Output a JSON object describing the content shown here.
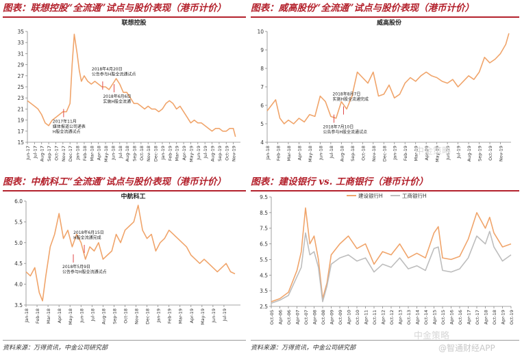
{
  "footer": {
    "source_left": "资料来源：万得资讯，中金公司研究部",
    "source_right": "资料来源：万得资讯，中金公司研究部",
    "watermark_top": "中金策略",
    "watermark_bottom": "中金策略",
    "watermark_app": "@智通财经APP"
  },
  "colors": {
    "title_red": "#b3202b",
    "series_orange": "#f0a46a",
    "series_grey": "#bdbdbd"
  },
  "chart_data": [
    {
      "type": "line",
      "panel_title": "图表：联想控股“全流通”试点与股价表现（港币计价）",
      "title": "联想控股",
      "ylim": [
        15,
        35
      ],
      "yticks": [
        15,
        17,
        19,
        21,
        23,
        25,
        27,
        29,
        31,
        33,
        35
      ],
      "xlim": [
        0,
        30
      ],
      "xticks": [
        "Jun-17",
        "Jul-17",
        "Aug-17",
        "Sep-17",
        "Oct-17",
        "Nov-17",
        "Dec-17",
        "Jan-18",
        "Feb-18",
        "Mar-18",
        "Apr-18",
        "May-18",
        "Jun-18",
        "Jul-18",
        "Aug-18",
        "Sep-18",
        "Oct-18",
        "Nov-18",
        "Dec-18",
        "Jan-19",
        "Feb-19",
        "Mar-19",
        "Apr-19",
        "May-19",
        "Jun-19",
        "Jul-19",
        "Aug-19",
        "Sep-19",
        "Oct-19",
        "Nov-19"
      ],
      "series": [
        {
          "name": "联想控股",
          "x": [
            0,
            0.5,
            1,
            1.5,
            2,
            2.5,
            3,
            3.5,
            4,
            4.5,
            5,
            5.5,
            6,
            6.3,
            6.6,
            7,
            7.3,
            7.6,
            8,
            8.5,
            9,
            9.5,
            10,
            10.5,
            11,
            11.5,
            12,
            12.5,
            13,
            13.5,
            14,
            14.5,
            15,
            15.5,
            16,
            16.5,
            17,
            17.5,
            18,
            18.5,
            19,
            19.5,
            20,
            20.5,
            21,
            21.5,
            22,
            22.5,
            23,
            23.5,
            24,
            24.5,
            25,
            25.5,
            26,
            26.5,
            27,
            27.5,
            28,
            28.5,
            29,
            29.3
          ],
          "values": [
            22.5,
            22,
            21.5,
            21,
            20,
            18.5,
            18,
            19,
            19.5,
            20,
            20.5,
            20.5,
            22,
            29,
            34.5,
            31,
            28,
            26,
            27,
            26,
            25.5,
            26,
            25.5,
            25,
            25,
            24.5,
            25.5,
            26.5,
            25.5,
            24,
            24,
            23,
            22,
            22,
            21.5,
            21,
            21.5,
            21,
            21,
            20.5,
            21,
            22,
            22.5,
            22,
            21,
            21.5,
            20.5,
            19.5,
            18.5,
            19,
            18.5,
            18.5,
            18,
            17.5,
            17,
            17.5,
            17.5,
            17,
            17,
            17.5,
            17.5,
            16
          ]
        }
      ],
      "annotations": [
        {
          "text": "2017年11月\n媒体报道公司递表\nH股全流通试点",
          "x": 5.1,
          "y": 21
        },
        {
          "text": "2018年4月20日\n公告参与H股全流通试点",
          "x": 10.6,
          "y": 24.5
        },
        {
          "text": "2018年6月6日\n实施H股全流通",
          "x": 12.2,
          "y": 25.5
        }
      ]
    },
    {
      "type": "line",
      "panel_title": "图表：威高股份“全流通”试点与股价表现（港币计价）",
      "title": "威高股份",
      "ylim": [
        4,
        10
      ],
      "yticks": [
        4,
        5,
        6,
        7,
        8,
        9,
        10
      ],
      "xlim": [
        0,
        23
      ],
      "xticks": [
        "Jan-18",
        "Feb-18",
        "Mar-18",
        "Apr-18",
        "May-18",
        "Jun-18",
        "Jul-18",
        "Aug-18",
        "Sep-18",
        "Oct-18",
        "Nov-18",
        "Dec-18",
        "Jan-19",
        "Feb-19",
        "Mar-19",
        "Apr-19",
        "May-19",
        "Jun-19",
        "Jul-19",
        "Aug-19",
        "Sep-19",
        "Oct-19",
        "Nov-19"
      ],
      "series": [
        {
          "name": "威高股份",
          "x": [
            0,
            0.4,
            0.8,
            1.2,
            1.6,
            2,
            2.5,
            3,
            3.5,
            4,
            4.5,
            5,
            5.5,
            6,
            6.5,
            7,
            7.5,
            8,
            8.5,
            9,
            9.5,
            10,
            10.5,
            11,
            11.5,
            12,
            12.5,
            13,
            13.5,
            14,
            14.5,
            15,
            15.5,
            16,
            16.5,
            17,
            17.5,
            18,
            18.5,
            19,
            19.5,
            20,
            20.5,
            21,
            21.5,
            22,
            22.5,
            22.8
          ],
          "values": [
            5.7,
            6,
            6.3,
            5.3,
            5,
            5.2,
            5,
            5.3,
            5.1,
            5.5,
            5.4,
            6.5,
            6.2,
            5.4,
            5.3,
            6.2,
            5.8,
            6.5,
            7.8,
            7.5,
            7.2,
            7.8,
            6.5,
            6.6,
            7.1,
            6.4,
            6.6,
            7.2,
            7.5,
            7.3,
            7.6,
            7.8,
            7.6,
            7.5,
            7.3,
            7.2,
            7.4,
            7.0,
            7.3,
            7.6,
            7.4,
            7.8,
            8.6,
            8.3,
            8.5,
            8.8,
            9.3,
            9.9
          ]
        }
      ],
      "annotations": [
        {
          "text": "2018年7月10日\n公告参与H股全流通试点",
          "x": 6.3,
          "y": 5.5
        },
        {
          "text": "2018年8月7日\n实施H股全流通完成",
          "x": 7.2,
          "y": 5.5
        }
      ]
    },
    {
      "type": "line",
      "panel_title": "图表：中航科工“全流通”试点与股价表现（港币计价）",
      "title": "中航科工",
      "ylim": [
        3.5,
        6.0
      ],
      "yticks": [
        3.5,
        4.0,
        4.5,
        5.0,
        5.5,
        6.0
      ],
      "xlim": [
        0,
        19.5
      ],
      "xticks": [
        "Jan-18",
        "Feb-18",
        "Mar-18",
        "Apr-18",
        "May-18",
        "Jun-18",
        "Jul-18",
        "Aug-18",
        "Sep-18",
        "Oct-18",
        "Nov-18",
        "Dec-18",
        "Jan-19",
        "Feb-19",
        "Mar-19",
        "Apr-19",
        "May-19",
        "Jun-19",
        "Jul-19"
      ],
      "series": [
        {
          "name": "中航科工",
          "x": [
            0,
            0.4,
            0.8,
            1.2,
            1.5,
            1.8,
            2.2,
            2.6,
            3,
            3.4,
            3.8,
            4.2,
            4.6,
            5,
            5.4,
            5.8,
            6.2,
            6.6,
            7,
            7.4,
            7.8,
            8.2,
            8.6,
            9,
            9.4,
            9.8,
            10.2,
            10.6,
            11,
            11.4,
            11.8,
            12.2,
            12.6,
            13,
            13.4,
            13.8,
            14.2,
            14.6,
            15,
            15.4,
            15.8,
            16.2,
            16.6,
            17,
            17.4,
            17.8,
            18.2,
            18.6,
            19
          ],
          "values": [
            4.3,
            4.2,
            4.4,
            3.8,
            3.6,
            4.2,
            4.9,
            5.2,
            5.7,
            5.1,
            5.3,
            4.9,
            5.2,
            5.0,
            4.6,
            4.9,
            4.8,
            5.0,
            4.6,
            4.7,
            4.8,
            5.2,
            5.0,
            5.3,
            5.4,
            5.5,
            5.9,
            5.3,
            5.1,
            5.2,
            4.8,
            5.0,
            5.1,
            5.3,
            5.2,
            5.1,
            5.0,
            4.9,
            4.7,
            4.6,
            4.5,
            4.6,
            4.5,
            4.4,
            4.3,
            4.4,
            4.5,
            4.3,
            4.25
          ]
        }
      ],
      "annotations": [
        {
          "text": "2018年5月9日\n公告参与H股全流通试点",
          "x": 4.3,
          "y": 4.72
        },
        {
          "text": "2018年6月15日\nH股全流通完成",
          "x": 5.3,
          "y": 4.75
        }
      ]
    },
    {
      "type": "line",
      "panel_title": "图表：建设银行 vs. 工商银行（港币计价）",
      "title": "",
      "ylim": [
        2.5,
        9.5
      ],
      "yticks": [
        2.5,
        3.5,
        4.5,
        5.5,
        6.5,
        7.5,
        8.5,
        9.5
      ],
      "xlim": [
        0,
        28
      ],
      "xticks": [
        "Oct-05",
        "Apr-06",
        "Oct-06",
        "Apr-07",
        "Oct-07",
        "Apr-08",
        "Oct-08",
        "Apr-09",
        "Oct-09",
        "Apr-10",
        "Oct-10",
        "Apr-11",
        "Oct-11",
        "Apr-12",
        "Oct-12",
        "Apr-13",
        "Oct-13",
        "Apr-14",
        "Oct-14",
        "Apr-15",
        "Oct-15",
        "Apr-16",
        "Oct-16",
        "Apr-17",
        "Oct-17",
        "Apr-18",
        "Oct-18",
        "Apr-19",
        "Oct-19"
      ],
      "series": [
        {
          "name": "建设银行H",
          "x": [
            0,
            1,
            2,
            3,
            3.5,
            4,
            4.5,
            5,
            5.5,
            6,
            6.5,
            7,
            8,
            9,
            10,
            11,
            12,
            13,
            14,
            15,
            16,
            17,
            18,
            19,
            19.5,
            20,
            21,
            22,
            23,
            24,
            25,
            25.5,
            26,
            27,
            28
          ],
          "values": [
            2.8,
            3,
            3.4,
            4.8,
            6,
            8.8,
            6.5,
            7,
            5.5,
            3,
            4,
            5.8,
            6.5,
            7,
            6.2,
            6.5,
            5.2,
            6,
            5.8,
            6.5,
            5.6,
            5.9,
            5.6,
            7.2,
            7.6,
            5.6,
            5.5,
            5.7,
            6.8,
            8.5,
            7.5,
            8.2,
            7.2,
            6.3,
            6.5
          ]
        },
        {
          "name": "工商银行H",
          "x": [
            0,
            1,
            2,
            3,
            3.5,
            4,
            4.5,
            5,
            5.5,
            6,
            6.5,
            7,
            8,
            9,
            10,
            11,
            12,
            13,
            14,
            15,
            16,
            17,
            18,
            19,
            19.5,
            20,
            21,
            22,
            23,
            24,
            25,
            25.5,
            26,
            27,
            28
          ],
          "values": [
            2.7,
            2.9,
            3.2,
            4.4,
            5,
            7.2,
            5.8,
            6,
            5,
            2.8,
            3.8,
            5.2,
            5.6,
            5.8,
            5.4,
            5.6,
            4.7,
            5.2,
            5,
            5.6,
            4.9,
            5.1,
            4.8,
            6.2,
            6.3,
            4.8,
            4.7,
            4.9,
            5.6,
            7,
            6.5,
            7.3,
            6.3,
            5.4,
            5.8
          ]
        }
      ],
      "legend": [
        "建设银行H",
        "工商银行H"
      ]
    }
  ]
}
